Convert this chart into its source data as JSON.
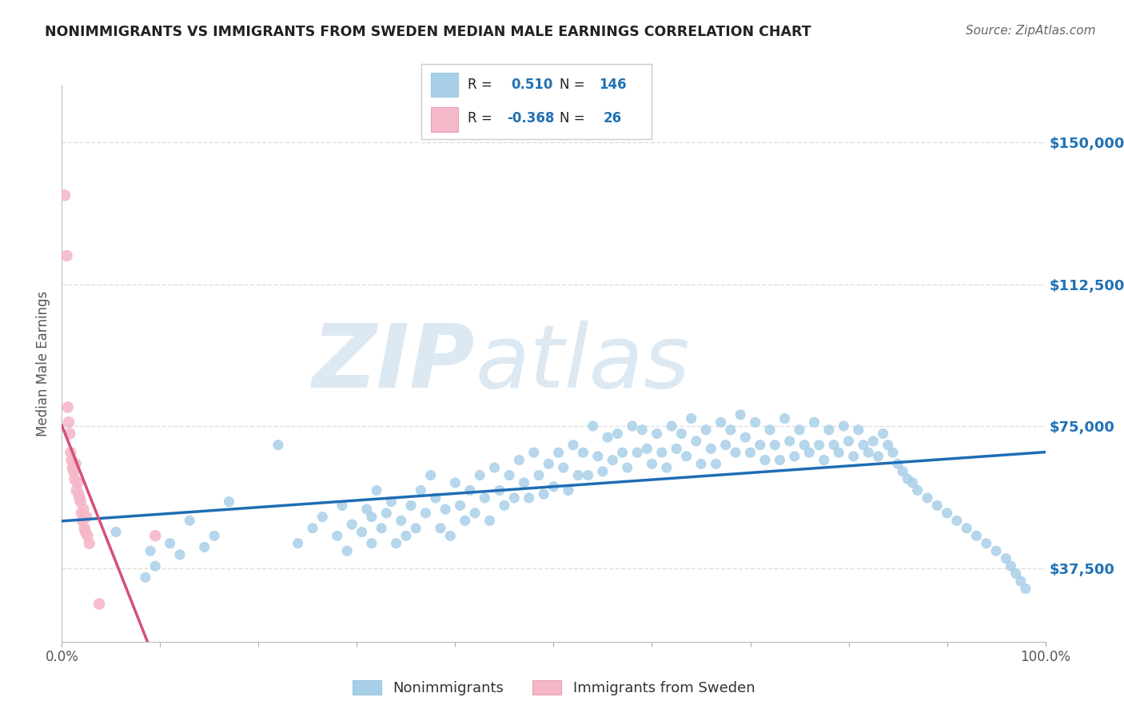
{
  "title": "NONIMMIGRANTS VS IMMIGRANTS FROM SWEDEN MEDIAN MALE EARNINGS CORRELATION CHART",
  "source": "Source: ZipAtlas.com",
  "ylabel": "Median Male Earnings",
  "yticks": [
    37500,
    75000,
    112500,
    150000
  ],
  "ytick_labels": [
    "$37,500",
    "$75,000",
    "$112,500",
    "$150,000"
  ],
  "legend_label1": "Nonimmigrants",
  "legend_label2": "Immigrants from Sweden",
  "r1": 0.51,
  "n1": 146,
  "r2": -0.368,
  "n2": 26,
  "color_blue_scatter": "#a8cfe8",
  "color_pink_scatter": "#f4b8c8",
  "color_blue_line": "#1f6db5",
  "color_pink_line": "#d64f7a",
  "color_pink_line_ext": "#e8b0c8",
  "color_blue_text": "#2171b5",
  "color_watermark": "#dce8f2",
  "bg_color": "#ffffff",
  "grid_color": "#e0e0e0",
  "xmin": 0.0,
  "xmax": 1.0,
  "ymin": 18000,
  "ymax": 165000,
  "nonimm_x": [
    0.055,
    0.085,
    0.09,
    0.095,
    0.11,
    0.12,
    0.13,
    0.145,
    0.155,
    0.17,
    0.22,
    0.24,
    0.255,
    0.265,
    0.28,
    0.285,
    0.29,
    0.295,
    0.305,
    0.31,
    0.315,
    0.315,
    0.32,
    0.325,
    0.33,
    0.335,
    0.34,
    0.345,
    0.35,
    0.355,
    0.36,
    0.365,
    0.37,
    0.375,
    0.38,
    0.385,
    0.39,
    0.395,
    0.4,
    0.405,
    0.41,
    0.415,
    0.42,
    0.425,
    0.43,
    0.435,
    0.44,
    0.445,
    0.45,
    0.455,
    0.46,
    0.465,
    0.47,
    0.475,
    0.48,
    0.485,
    0.49,
    0.495,
    0.5,
    0.505,
    0.51,
    0.515,
    0.52,
    0.525,
    0.53,
    0.535,
    0.54,
    0.545,
    0.55,
    0.555,
    0.56,
    0.565,
    0.57,
    0.575,
    0.58,
    0.585,
    0.59,
    0.595,
    0.6,
    0.605,
    0.61,
    0.615,
    0.62,
    0.625,
    0.63,
    0.635,
    0.64,
    0.645,
    0.65,
    0.655,
    0.66,
    0.665,
    0.67,
    0.675,
    0.68,
    0.685,
    0.69,
    0.695,
    0.7,
    0.705,
    0.71,
    0.715,
    0.72,
    0.725,
    0.73,
    0.735,
    0.74,
    0.745,
    0.75,
    0.755,
    0.76,
    0.765,
    0.77,
    0.775,
    0.78,
    0.785,
    0.79,
    0.795,
    0.8,
    0.805,
    0.81,
    0.815,
    0.82,
    0.825,
    0.83,
    0.835,
    0.84,
    0.845,
    0.85,
    0.855,
    0.86,
    0.865,
    0.87,
    0.88,
    0.89,
    0.9,
    0.91,
    0.92,
    0.93,
    0.94,
    0.95,
    0.96,
    0.965,
    0.97,
    0.975,
    0.98
  ],
  "nonimm_y": [
    47000,
    35000,
    42000,
    38000,
    44000,
    41000,
    50000,
    43000,
    46000,
    55000,
    70000,
    44000,
    48000,
    51000,
    46000,
    54000,
    42000,
    49000,
    47000,
    53000,
    51000,
    44000,
    58000,
    48000,
    52000,
    55000,
    44000,
    50000,
    46000,
    54000,
    48000,
    58000,
    52000,
    62000,
    56000,
    48000,
    53000,
    46000,
    60000,
    54000,
    50000,
    58000,
    52000,
    62000,
    56000,
    50000,
    64000,
    58000,
    54000,
    62000,
    56000,
    66000,
    60000,
    56000,
    68000,
    62000,
    57000,
    65000,
    59000,
    68000,
    64000,
    58000,
    70000,
    62000,
    68000,
    62000,
    75000,
    67000,
    63000,
    72000,
    66000,
    73000,
    68000,
    64000,
    75000,
    68000,
    74000,
    69000,
    65000,
    73000,
    68000,
    64000,
    75000,
    69000,
    73000,
    67000,
    77000,
    71000,
    65000,
    74000,
    69000,
    65000,
    76000,
    70000,
    74000,
    68000,
    78000,
    72000,
    68000,
    76000,
    70000,
    66000,
    74000,
    70000,
    66000,
    77000,
    71000,
    67000,
    74000,
    70000,
    68000,
    76000,
    70000,
    66000,
    74000,
    70000,
    68000,
    75000,
    71000,
    67000,
    74000,
    70000,
    68000,
    71000,
    67000,
    73000,
    70000,
    68000,
    65000,
    63000,
    61000,
    60000,
    58000,
    56000,
    54000,
    52000,
    50000,
    48000,
    46000,
    44000,
    42000,
    40000,
    38000,
    36000,
    34000,
    32000
  ],
  "imm_x": [
    0.003,
    0.005,
    0.006,
    0.007,
    0.008,
    0.009,
    0.01,
    0.011,
    0.012,
    0.013,
    0.014,
    0.015,
    0.016,
    0.017,
    0.018,
    0.019,
    0.02,
    0.021,
    0.022,
    0.023,
    0.024,
    0.025,
    0.026,
    0.028,
    0.038,
    0.095
  ],
  "imm_y": [
    136000,
    120000,
    80000,
    76000,
    73000,
    68000,
    66000,
    64000,
    63000,
    61000,
    65000,
    58000,
    60000,
    57000,
    56000,
    55000,
    52000,
    50000,
    53000,
    48000,
    47000,
    51000,
    46000,
    44000,
    28000,
    46000
  ]
}
